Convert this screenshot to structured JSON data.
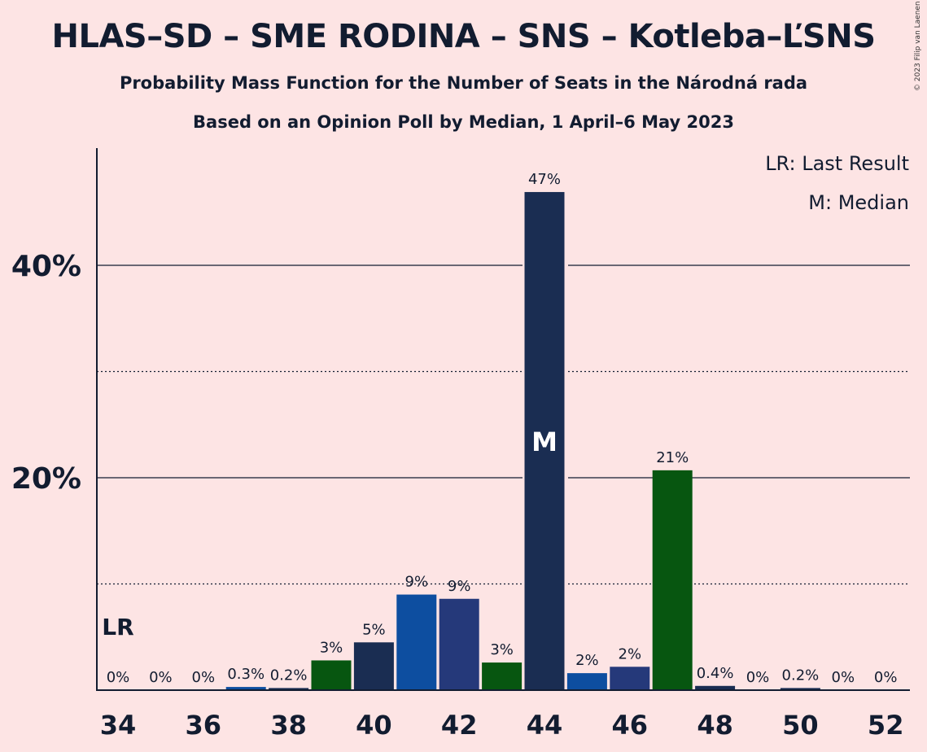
{
  "chart_data": {
    "type": "bar",
    "title": "HLAS–SD – SME RODINA – SNS – Kotleba–ĽSNS",
    "subtitle": "Probability Mass Function for the Number of Seats in the Národná rada",
    "subtitle2": "Based on an Opinion Poll by Median, 1 April–6 May 2023",
    "copyright": "© 2023 Filip van Laenen",
    "legend": [
      "LR: Last Result",
      "M: Median"
    ],
    "legend_position": "top-right",
    "x": [
      34,
      35,
      36,
      37,
      38,
      39,
      40,
      41,
      42,
      43,
      44,
      45,
      46,
      47,
      48,
      49,
      50,
      51,
      52
    ],
    "values": [
      0,
      0,
      0,
      0.3,
      0.2,
      2.8,
      4.5,
      9.0,
      8.6,
      2.6,
      46.9,
      1.6,
      2.2,
      20.7,
      0.4,
      0,
      0.2,
      0,
      0
    ],
    "labels": [
      "0%",
      "0%",
      "0%",
      "0.3%",
      "0.2%",
      "3%",
      "5%",
      "9%",
      "9%",
      "3%",
      "47%",
      "2%",
      "2%",
      "21%",
      "0.4%",
      "0%",
      "0.2%",
      "0%",
      "0%"
    ],
    "bar_colors": [
      "#0d4ea0",
      "#0d4ea0",
      "#0d4ea0",
      "#0d4ea0",
      "#1a2d52",
      "#075610",
      "#1a2d52",
      "#0d4ea0",
      "#25397a",
      "#075610",
      "#1a2d52",
      "#0d4ea0",
      "#25397a",
      "#075610",
      "#1a2d52",
      "#0d4ea0",
      "#1a2d52",
      "#0d4ea0",
      "#1a2d52"
    ],
    "x_tick_labels": [
      "34",
      "36",
      "38",
      "40",
      "42",
      "44",
      "46",
      "48",
      "50",
      "52"
    ],
    "y_ticks": [
      20,
      40
    ],
    "y_tick_labels": [
      "20%",
      "40%"
    ],
    "ylim": [
      0,
      50
    ],
    "major_grid": [
      20,
      40
    ],
    "minor_grid": [
      10,
      30
    ],
    "last_result_seat": 34,
    "last_result_label": "LR",
    "median_seat": 44,
    "median_label": "M"
  }
}
